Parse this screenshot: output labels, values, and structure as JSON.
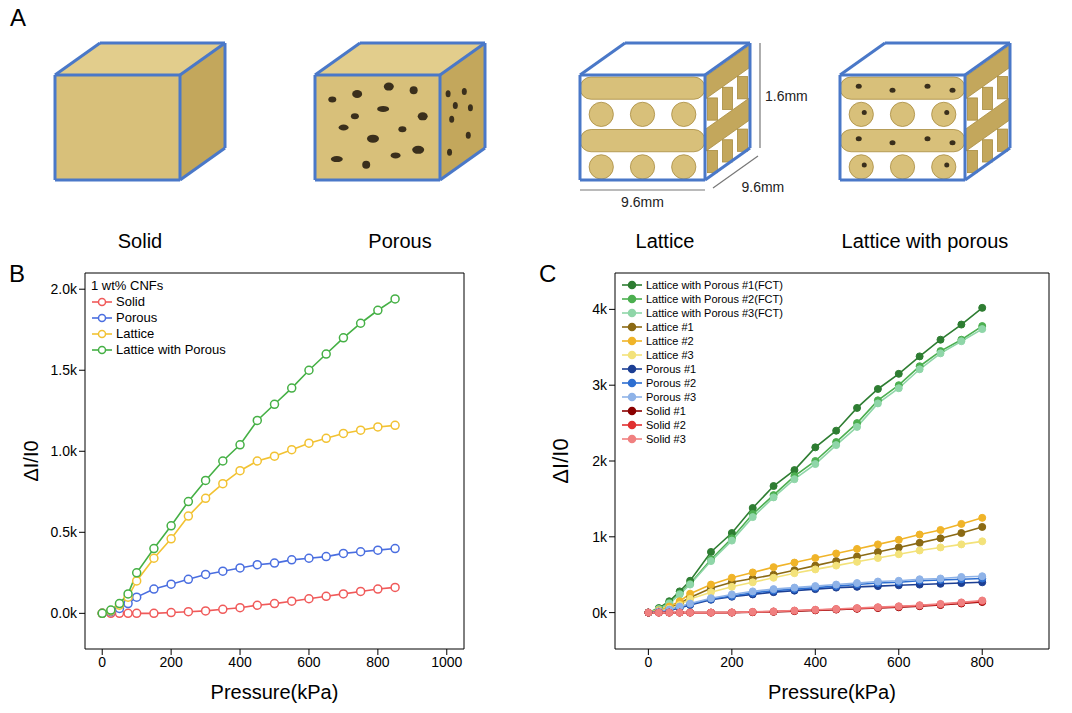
{
  "panel_a": {
    "panel": "A",
    "items": [
      {
        "label": "Solid"
      },
      {
        "label": "Porous"
      },
      {
        "label": "Lattice"
      },
      {
        "label": "Lattice with porous"
      }
    ],
    "dimensions": {
      "height": "1.6mm",
      "width": "9.6mm",
      "depth": "9.6mm"
    }
  },
  "chart_data": [
    {
      "panel": "B",
      "type": "line",
      "x_label": "Pressure(kPa)",
      "y_label": "ΔI/I0",
      "legend_title": "1 wt% CNFs",
      "legend": "top-left",
      "marker": "hollow",
      "x": [
        0,
        25,
        50,
        75,
        100,
        150,
        200,
        250,
        300,
        350,
        400,
        450,
        500,
        550,
        600,
        650,
        700,
        750,
        800,
        850
      ],
      "xlim": [
        -50,
        1050
      ],
      "xticks": [
        0,
        200,
        400,
        600,
        800,
        1000
      ],
      "ylim": [
        -220,
        2100
      ],
      "yticks": [
        {
          "value": 0,
          "label": "0.0k"
        },
        {
          "value": 500,
          "label": "0.5k"
        },
        {
          "value": 1000,
          "label": "1.0k"
        },
        {
          "value": 1500,
          "label": "1.5k"
        },
        {
          "value": 2000,
          "label": "2.0k"
        }
      ],
      "series": [
        {
          "name": "Solid",
          "color": "#f05a5a",
          "values": [
            0,
            0,
            0,
            0,
            0,
            0,
            5,
            10,
            15,
            25,
            35,
            50,
            60,
            75,
            90,
            105,
            120,
            135,
            150,
            160
          ]
        },
        {
          "name": "Porous",
          "color": "#4a6ee0",
          "values": [
            0,
            10,
            30,
            60,
            100,
            150,
            180,
            210,
            240,
            260,
            280,
            300,
            310,
            330,
            340,
            350,
            370,
            380,
            390,
            400
          ]
        },
        {
          "name": "Lattice",
          "color": "#f2c232",
          "values": [
            0,
            15,
            50,
            100,
            200,
            340,
            460,
            600,
            710,
            800,
            880,
            940,
            970,
            1010,
            1050,
            1080,
            1110,
            1130,
            1150,
            1160
          ]
        },
        {
          "name": "Lattice with Porous",
          "color": "#45b045",
          "values": [
            0,
            20,
            60,
            120,
            250,
            400,
            540,
            690,
            820,
            940,
            1040,
            1190,
            1290,
            1390,
            1500,
            1600,
            1700,
            1790,
            1870,
            1940
          ]
        }
      ]
    },
    {
      "panel": "C",
      "type": "line",
      "x_label": "Pressure(kPa)",
      "y_label": "ΔI/I0",
      "legend": "top-left",
      "marker": "circle",
      "x": [
        0,
        25,
        50,
        75,
        100,
        150,
        200,
        250,
        300,
        350,
        400,
        450,
        500,
        550,
        600,
        650,
        700,
        750,
        800
      ],
      "xlim": [
        -80,
        960
      ],
      "xticks": [
        0,
        200,
        400,
        600,
        800
      ],
      "ylim": [
        -480,
        4480
      ],
      "yticks": [
        {
          "value": 0,
          "label": "0k"
        },
        {
          "value": 1000,
          "label": "1k"
        },
        {
          "value": 2000,
          "label": "2k"
        },
        {
          "value": 3000,
          "label": "3k"
        },
        {
          "value": 4000,
          "label": "4k"
        }
      ],
      "series": [
        {
          "name": "Lattice with Porous #1(FCT)",
          "color": "#2e7d32",
          "values": [
            0,
            60,
            150,
            280,
            420,
            800,
            1050,
            1380,
            1670,
            1880,
            2180,
            2400,
            2700,
            2950,
            3150,
            3380,
            3600,
            3800,
            4020
          ]
        },
        {
          "name": "Lattice with Porous #2(FCT)",
          "color": "#4caf50",
          "values": [
            0,
            50,
            130,
            250,
            380,
            700,
            980,
            1300,
            1550,
            1800,
            2000,
            2250,
            2500,
            2800,
            3000,
            3250,
            3450,
            3600,
            3780
          ]
        },
        {
          "name": "Lattice with Porous #3(FCT)",
          "color": "#8fd6a8",
          "values": [
            0,
            45,
            120,
            240,
            370,
            680,
            950,
            1260,
            1520,
            1760,
            1960,
            2210,
            2450,
            2760,
            2960,
            3210,
            3420,
            3580,
            3740
          ]
        },
        {
          "name": "Lattice #1",
          "color": "#8b6a14",
          "values": [
            0,
            20,
            60,
            120,
            200,
            320,
            400,
            450,
            500,
            560,
            620,
            680,
            740,
            800,
            860,
            920,
            980,
            1050,
            1130
          ]
        },
        {
          "name": "Lattice #2",
          "color": "#f0b429",
          "values": [
            0,
            30,
            80,
            150,
            250,
            370,
            460,
            530,
            600,
            660,
            720,
            780,
            840,
            900,
            960,
            1030,
            1090,
            1170,
            1250
          ]
        },
        {
          "name": "Lattice #3",
          "color": "#f3e27a",
          "values": [
            0,
            20,
            50,
            100,
            180,
            270,
            340,
            400,
            460,
            520,
            570,
            620,
            670,
            720,
            770,
            820,
            860,
            900,
            940
          ]
        },
        {
          "name": "Porous #1",
          "color": "#1c3f94",
          "values": [
            0,
            10,
            30,
            60,
            100,
            170,
            210,
            240,
            270,
            290,
            310,
            330,
            340,
            350,
            360,
            370,
            380,
            390,
            400
          ]
        },
        {
          "name": "Porous #2",
          "color": "#2e6fd1",
          "values": [
            0,
            12,
            35,
            70,
            110,
            180,
            220,
            260,
            290,
            310,
            330,
            350,
            370,
            390,
            400,
            420,
            430,
            440,
            450
          ]
        },
        {
          "name": "Porous #3",
          "color": "#8fb3e8",
          "values": [
            0,
            15,
            40,
            80,
            120,
            190,
            240,
            280,
            310,
            330,
            350,
            370,
            390,
            410,
            420,
            440,
            450,
            470,
            480
          ]
        },
        {
          "name": "Solid #1",
          "color": "#8b0000",
          "values": [
            0,
            0,
            0,
            0,
            0,
            0,
            0,
            5,
            10,
            20,
            30,
            40,
            50,
            60,
            70,
            85,
            100,
            120,
            140
          ]
        },
        {
          "name": "Solid #2",
          "color": "#e03030",
          "values": [
            0,
            0,
            0,
            0,
            0,
            0,
            2,
            8,
            14,
            24,
            35,
            45,
            55,
            66,
            78,
            92,
            108,
            128,
            150
          ]
        },
        {
          "name": "Solid #3",
          "color": "#f08080",
          "values": [
            0,
            0,
            0,
            0,
            0,
            0,
            3,
            10,
            16,
            27,
            38,
            48,
            60,
            72,
            84,
            98,
            115,
            135,
            160
          ]
        }
      ]
    }
  ]
}
